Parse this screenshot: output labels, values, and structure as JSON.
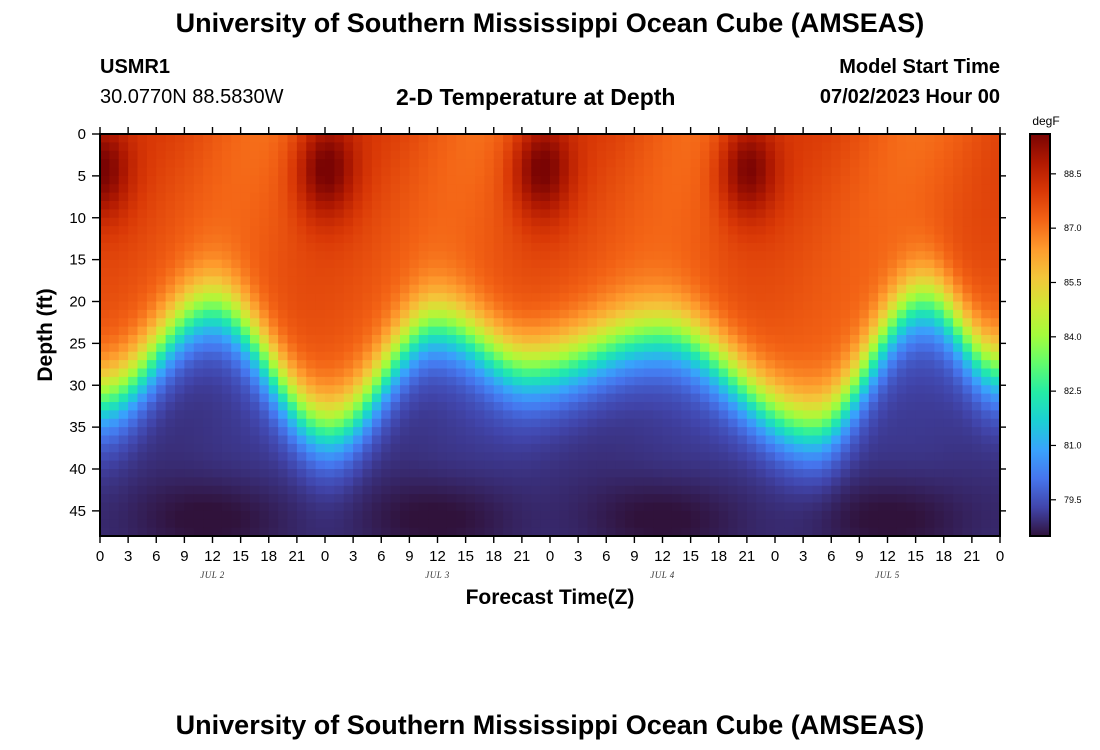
{
  "header": {
    "title": "University of Southern Mississippi Ocean Cube (AMSEAS)",
    "station_id": "USMR1",
    "coordinates": "30.0770N  88.5830W",
    "plot_title": "2-D Temperature at Depth",
    "model_start_label": "Model Start Time",
    "model_start_value": "07/02/2023 Hour 00"
  },
  "footer": {
    "title": "University of Southern Mississippi Ocean Cube (AMSEAS)"
  },
  "chart_data": {
    "type": "heatmap",
    "title": "2-D Temperature at Depth",
    "xlabel": "Forecast Time(Z)",
    "ylabel": "Depth (ft)",
    "x_ticks": [
      "0",
      "3",
      "6",
      "9",
      "12",
      "15",
      "18",
      "21",
      "0",
      "3",
      "6",
      "9",
      "12",
      "15",
      "18",
      "21",
      "0",
      "3",
      "6",
      "9",
      "12",
      "15",
      "18",
      "21",
      "0",
      "3",
      "6",
      "9",
      "12",
      "15",
      "18",
      "21",
      "0"
    ],
    "x_range_hours": [
      0,
      96
    ],
    "day_labels": [
      {
        "label": "JUL 2",
        "hour": 12
      },
      {
        "label": "JUL 3",
        "hour": 36
      },
      {
        "label": "JUL 4",
        "hour": 60
      },
      {
        "label": "JUL 5",
        "hour": 84
      }
    ],
    "y_ticks": [
      0,
      5,
      10,
      15,
      20,
      25,
      30,
      35,
      40,
      45
    ],
    "y_range_ft": [
      0,
      48
    ],
    "colorbar": {
      "unit": "degF",
      "range": [
        78.5,
        89.6
      ],
      "tick_values": [
        79.5,
        81.0,
        82.5,
        84.0,
        85.5,
        87.0,
        88.5
      ],
      "tick_labels": [
        "79.5",
        "81.0",
        "82.5",
        "84.0",
        "85.5",
        "87.0",
        "88.5"
      ],
      "colors": [
        "#30123b",
        "#4145ab",
        "#4675ed",
        "#39a2fc",
        "#1bcfd4",
        "#24eca6",
        "#61fc6c",
        "#a4fc3b",
        "#d1e834",
        "#f3c63a",
        "#fe9b2d",
        "#f36315",
        "#d93806",
        "#b11901",
        "#7a0403"
      ]
    },
    "thermocline_depth_ft": [
      {
        "hour": 0,
        "depth": 31.5
      },
      {
        "hour": 12,
        "depth": 21
      },
      {
        "hour": 24.5,
        "depth": 35
      },
      {
        "hour": 36,
        "depth": 23
      },
      {
        "hour": 46,
        "depth": 28
      },
      {
        "hour": 60,
        "depth": 24
      },
      {
        "hour": 76,
        "depth": 35
      },
      {
        "hour": 88,
        "depth": 20
      },
      {
        "hour": 96,
        "depth": 28
      }
    ],
    "surface_max_hours": [
      0,
      24,
      47,
      69
    ],
    "surface_max_temp_degF": 89.5,
    "upper_layer_temp_degF": 87.5,
    "bottom_temp_degF": 79.0
  }
}
